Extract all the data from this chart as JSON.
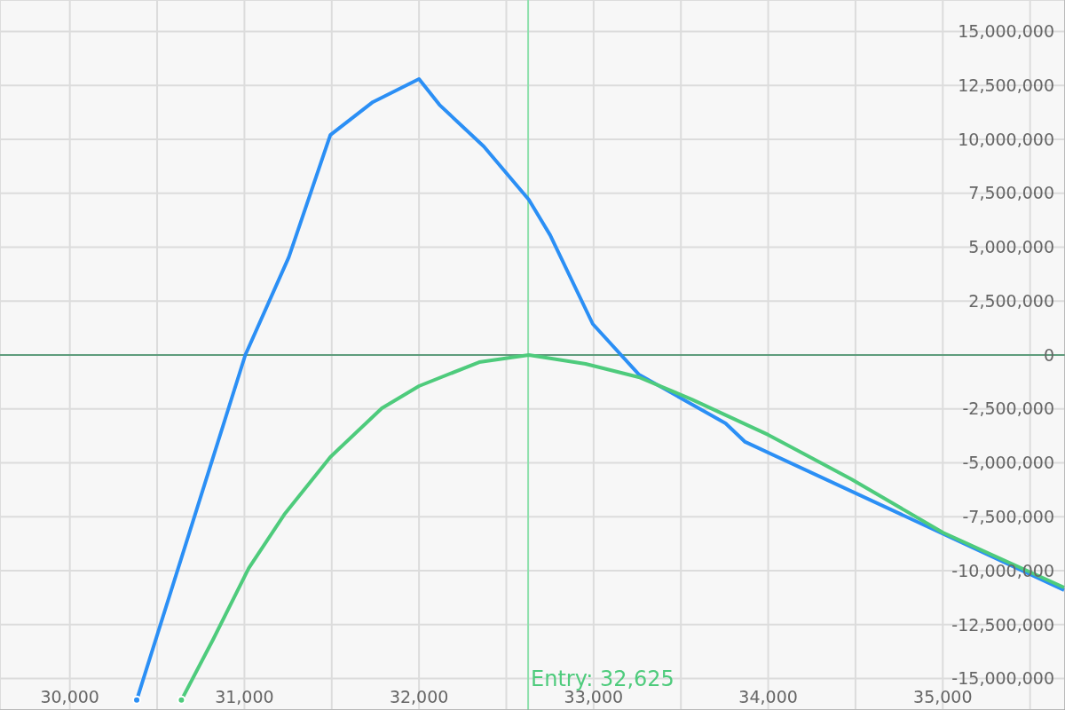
{
  "chart_data": {
    "type": "line",
    "xlim": [
      29600,
      35700
    ],
    "ylim": [
      -16460000,
      16460000
    ],
    "xticks": [
      {
        "value": 30000,
        "label": "30,000"
      },
      {
        "value": 30500,
        "label": null
      },
      {
        "value": 31000,
        "label": "31,000"
      },
      {
        "value": 31500,
        "label": null
      },
      {
        "value": 32000,
        "label": "32,000"
      },
      {
        "value": 32500,
        "label": null
      },
      {
        "value": 33000,
        "label": "33,000"
      },
      {
        "value": 33500,
        "label": null
      },
      {
        "value": 34000,
        "label": "34,000"
      },
      {
        "value": 34500,
        "label": null
      },
      {
        "value": 35000,
        "label": "35,000"
      },
      {
        "value": 35500,
        "label": null
      }
    ],
    "yticks": [
      {
        "value": -15000000,
        "label": "-15,000,000"
      },
      {
        "value": -12500000,
        "label": "-12,500,000"
      },
      {
        "value": -10000000,
        "label": "-10,000,000"
      },
      {
        "value": -7500000,
        "label": "-7,500,000"
      },
      {
        "value": -5000000,
        "label": "-5,000,000"
      },
      {
        "value": -2500000,
        "label": "-2,500,000"
      },
      0,
      {
        "value": 2500000,
        "label": "2,500,000"
      },
      {
        "value": 5000000,
        "label": "5,000,000"
      },
      {
        "value": 7500000,
        "label": "7,500,000"
      },
      {
        "value": 10000000,
        "label": "10,000,000"
      },
      {
        "value": 12500000,
        "label": "12,500,000"
      },
      {
        "value": 15000000,
        "label": "15,000,000"
      }
    ],
    "grid": true,
    "legend": false,
    "marker": "none",
    "line_style": "solid",
    "series": [
      {
        "color": "#2b8ff5",
        "x": [
          30383,
          31005,
          31254,
          31492,
          31736,
          32000,
          32117,
          32371,
          32629,
          32751,
          32995,
          33259,
          33756,
          33868,
          35695
        ],
        "values": [
          -16000000,
          0,
          4530000,
          10200000,
          11730000,
          12800000,
          11600000,
          9670000,
          7200000,
          5560000,
          1440000,
          -900000,
          -3170000,
          -4030000,
          -10900000
        ]
      },
      {
        "color": "#4ecb7c",
        "x": [
          30639,
          30822,
          31025,
          31228,
          31492,
          31787,
          32000,
          32345,
          32629,
          32954,
          33259,
          33563,
          34000,
          34477,
          35000,
          35695
        ],
        "values": [
          -16000000,
          -13170000,
          -9880000,
          -7400000,
          -4730000,
          -2470000,
          -1440000,
          -330000,
          0,
          -410000,
          -1030000,
          -2060000,
          -3700000,
          -5760000,
          -8230000,
          -10780000
        ]
      }
    ],
    "ref_lines": [
      {
        "axis": "y",
        "value": 0,
        "color": "#5e9c7c"
      },
      {
        "axis": "x",
        "value": 32625,
        "label": "Entry: 32,625",
        "color": "#8fe0ad"
      }
    ]
  }
}
